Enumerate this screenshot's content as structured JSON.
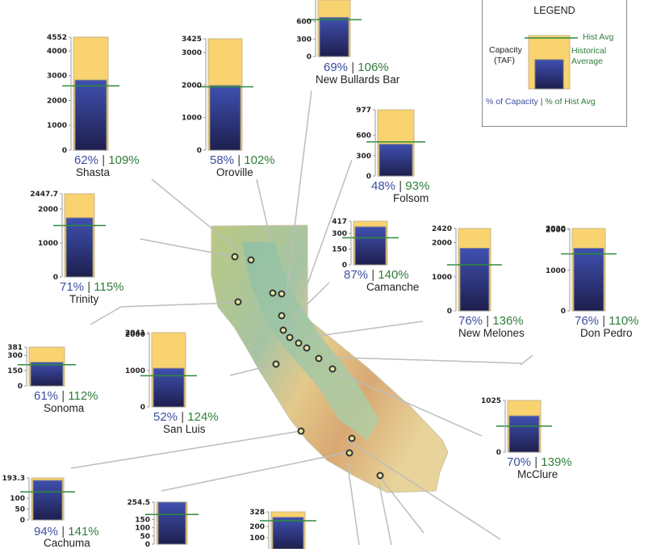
{
  "legend": {
    "title": "LEGEND",
    "hist_avg": "Hist Avg",
    "capacity": "Capacity",
    "taf": "(TAF)",
    "historical": "Historical",
    "average": "Average",
    "pct_capacity": "% of Capacity",
    "sep": "|",
    "pct_hist": "% of Hist Avg"
  },
  "colors": {
    "capacity_fill": "#f8d36f",
    "storage_top": "#3f50b0",
    "storage_bottom": "#1e1f4e",
    "hist_line": "#2e8b3d",
    "capacity_text": "#3b4fa0",
    "hist_text": "#2f7d3a"
  },
  "reservoirs": [
    {
      "id": "shasta",
      "name": "Shasta",
      "capacity": 4552,
      "storage": 2822,
      "hist_avg": 2589,
      "pct_capacity": "62%",
      "pct_hist": "109%",
      "ticks": [
        "4552",
        "4000",
        "3000",
        "2000",
        "1000",
        "0"
      ]
    },
    {
      "id": "oroville",
      "name": "Oroville",
      "capacity": 3425,
      "storage": 1987,
      "hist_avg": 1948,
      "pct_capacity": "58%",
      "pct_hist": "102%",
      "ticks": [
        "3425",
        "3000",
        "2000",
        "1000",
        "0"
      ]
    },
    {
      "id": "bullards",
      "name": "New Bullards Bar",
      "capacity": 966,
      "storage": 667,
      "hist_avg": 629,
      "pct_capacity": "69%",
      "pct_hist": "106%",
      "ticks": [
        "600",
        "300",
        "0"
      ]
    },
    {
      "id": "folsom",
      "name": "Folsom",
      "capacity": 977,
      "storage": 469,
      "hist_avg": 504,
      "pct_capacity": "48%",
      "pct_hist": "93%",
      "ticks": [
        "977",
        "600",
        "300",
        "0"
      ]
    },
    {
      "id": "trinity",
      "name": "Trinity",
      "capacity": 2447.7,
      "storage": 1738,
      "hist_avg": 1511,
      "pct_capacity": "71%",
      "pct_hist": "115%",
      "ticks": [
        "2447.7",
        "2000",
        "1000",
        "0"
      ]
    },
    {
      "id": "camanche",
      "name": "Camanche",
      "capacity": 417,
      "storage": 363,
      "hist_avg": 259,
      "pct_capacity": "87%",
      "pct_hist": "140%",
      "ticks": [
        "417",
        "300",
        "150",
        "0"
      ]
    },
    {
      "id": "melones",
      "name": "New Melones",
      "capacity": 2420,
      "storage": 1839,
      "hist_avg": 1352,
      "pct_capacity": "76%",
      "pct_hist": "136%",
      "ticks": [
        "2420",
        "2000",
        "1000",
        "0"
      ]
    },
    {
      "id": "donpedro",
      "name": "Don Pedro",
      "capacity": 2030,
      "storage": 1543,
      "hist_avg": 1403,
      "pct_capacity": "76%",
      "pct_hist": "110%",
      "ticks": [
        "2030",
        "2000",
        "1000",
        "0"
      ]
    },
    {
      "id": "sonoma",
      "name": "Sonoma",
      "capacity": 381,
      "storage": 232,
      "hist_avg": 208,
      "pct_capacity": "61%",
      "pct_hist": "112%",
      "ticks": [
        "381",
        "300",
        "150",
        "0"
      ]
    },
    {
      "id": "sanluis",
      "name": "San Luis",
      "capacity": 2041,
      "storage": 1061,
      "hist_avg": 856,
      "pct_capacity": "52%",
      "pct_hist": "124%",
      "ticks": [
        "2041",
        "2000",
        "1000",
        "0"
      ]
    },
    {
      "id": "mcclure",
      "name": "McClure",
      "capacity": 1025,
      "storage": 718,
      "hist_avg": 516,
      "pct_capacity": "70%",
      "pct_hist": "139%",
      "ticks": [
        "1025",
        "0"
      ]
    },
    {
      "id": "cachuma",
      "name": "Cachuma",
      "capacity": 193.3,
      "storage": 182,
      "hist_avg": 129,
      "pct_capacity": "94%",
      "pct_hist": "141%",
      "ticks": [
        "193.3",
        "100",
        "50",
        "0"
      ]
    },
    {
      "id": "castaic",
      "name": "",
      "capacity": 254.5,
      "storage": 254.5,
      "hist_avg": 180,
      "pct_capacity": "",
      "pct_hist": "",
      "ticks": [
        "254.5",
        "150",
        "100",
        "50",
        "0"
      ]
    },
    {
      "id": "pyramid",
      "name": "",
      "capacity": 328,
      "storage": 280,
      "hist_avg": 250,
      "pct_capacity": "",
      "pct_hist": "",
      "ticks": [
        "328",
        "200",
        "100"
      ]
    }
  ]
}
